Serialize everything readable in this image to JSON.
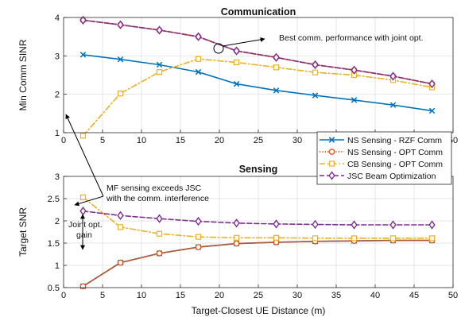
{
  "colors": {
    "ns_rzf": "#0072BD",
    "ns_opt": "#D95319",
    "cb_opt": "#EDB120",
    "jsc": "#7E2F8E"
  },
  "legend": {
    "placement": "right, between panels",
    "entries": [
      {
        "label": "NS Sensing - RZF Comm",
        "marker": "x",
        "dash": "solid",
        "color": "#0072BD"
      },
      {
        "label": "NS Sensing - OPT Comm",
        "marker": "circle",
        "dash": "dot",
        "color": "#D95319"
      },
      {
        "label": "CB Sensing - OPT Comm",
        "marker": "square",
        "dash": "dashdot",
        "color": "#EDB120"
      },
      {
        "label": "JSC Beam Optimization",
        "marker": "diamond",
        "dash": "dash",
        "color": "#7E2F8E"
      }
    ]
  },
  "chart_data": [
    {
      "type": "line",
      "title": "Communication",
      "xlabel": "",
      "ylabel": "Min Comm SINR",
      "xlim": [
        0,
        50
      ],
      "ylim": [
        1,
        4
      ],
      "xticks": [
        0,
        5,
        10,
        15,
        20,
        25,
        30,
        35,
        40,
        45,
        50
      ],
      "yticks": [
        1,
        2,
        3,
        4
      ],
      "grid": true,
      "x": [
        2.5,
        7.3,
        12.3,
        17.3,
        22.2,
        27.3,
        32.3,
        37.3,
        42.3,
        47.3
      ],
      "series": [
        {
          "name": "NS Sensing - RZF Comm",
          "values": [
            3.03,
            2.91,
            2.77,
            2.58,
            2.27,
            2.1,
            1.97,
            1.85,
            1.72,
            1.57
          ]
        },
        {
          "name": "NS Sensing - OPT Comm",
          "values": [
            3.93,
            3.81,
            3.67,
            3.5,
            3.13,
            2.96,
            2.77,
            2.63,
            2.47,
            2.27
          ]
        },
        {
          "name": "CB Sensing - OPT Comm",
          "values": [
            0.92,
            2.02,
            2.58,
            2.92,
            2.83,
            2.7,
            2.57,
            2.5,
            2.37,
            2.18
          ]
        },
        {
          "name": "JSC Beam Optimization",
          "values": [
            3.93,
            3.81,
            3.67,
            3.5,
            3.13,
            2.96,
            2.77,
            2.63,
            2.47,
            2.27
          ]
        }
      ],
      "annotations": [
        {
          "text": "Best comm. performance with joint opt.",
          "x": 21.4,
          "y": 3.2
        }
      ]
    },
    {
      "type": "line",
      "title": "Sensing",
      "xlabel": "Target-Closest UE Distance (m)",
      "ylabel": "Target SNR",
      "xlim": [
        0,
        50
      ],
      "ylim": [
        0.5,
        3
      ],
      "xticks": [
        0,
        5,
        10,
        15,
        20,
        25,
        30,
        35,
        40,
        45,
        50
      ],
      "yticks": [
        0.5,
        1,
        1.5,
        2,
        2.5,
        3
      ],
      "grid": true,
      "x": [
        2.5,
        7.3,
        12.3,
        17.3,
        22.2,
        27.3,
        32.3,
        37.3,
        42.3,
        47.3
      ],
      "series": [
        {
          "name": "NS Sensing - RZF Comm",
          "values": [
            0.53,
            1.06,
            1.27,
            1.41,
            1.49,
            1.52,
            1.54,
            1.55,
            1.56,
            1.56
          ]
        },
        {
          "name": "NS Sensing - OPT Comm",
          "values": [
            0.53,
            1.06,
            1.27,
            1.41,
            1.49,
            1.52,
            1.54,
            1.55,
            1.56,
            1.56
          ]
        },
        {
          "name": "CB Sensing - OPT Comm",
          "values": [
            2.53,
            1.86,
            1.71,
            1.64,
            1.62,
            1.62,
            1.61,
            1.61,
            1.61,
            1.61
          ]
        },
        {
          "name": "JSC Beam Optimization",
          "values": [
            2.22,
            2.12,
            2.05,
            1.99,
            1.95,
            1.93,
            1.92,
            1.91,
            1.91,
            1.91
          ]
        }
      ],
      "annotations": [
        {
          "text": "MF sensing exceeds JSC",
          "x": 11,
          "y": 2.53
        },
        {
          "text": "with the comm. interference",
          "x": 11,
          "y": 2.29
        },
        {
          "text": "Joint opt.",
          "x": 1.2,
          "y": 1.93
        },
        {
          "text": "gain",
          "x": 3.3,
          "y": 1.7
        }
      ]
    }
  ]
}
